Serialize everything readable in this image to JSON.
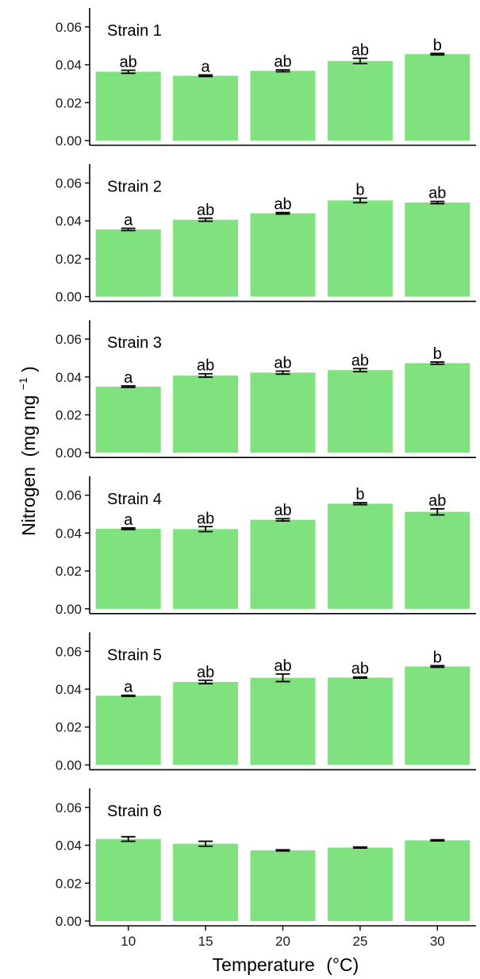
{
  "chart_data": {
    "type": "bar",
    "xlabel": "Temperature",
    "xlabel_unit": "(°C)",
    "ylabel": "Nitrogen",
    "ylabel_unit": "(mg  mg",
    "ylabel_unit_sup": "−1",
    "ylabel_unit_close": ")",
    "categories": [
      "10",
      "15",
      "20",
      "25",
      "30"
    ],
    "ylim": [
      0,
      0.07
    ],
    "yticks": [
      "0.00",
      "0.02",
      "0.04",
      "0.06"
    ],
    "bar_color": "#80e27e",
    "grid": false,
    "panels": [
      {
        "name": "Strain 1",
        "values": [
          0.0363,
          0.0342,
          0.0368,
          0.042,
          0.0456
        ],
        "errors": [
          0.0008,
          0.0004,
          0.0005,
          0.0014,
          0.0004
        ],
        "letters": [
          "ab",
          "a",
          "ab",
          "ab",
          "b"
        ]
      },
      {
        "name": "Strain 2",
        "values": [
          0.0355,
          0.0406,
          0.044,
          0.0508,
          0.0497
        ],
        "errors": [
          0.0006,
          0.0008,
          0.0004,
          0.0012,
          0.0006
        ],
        "letters": [
          "a",
          "ab",
          "ab",
          "b",
          "ab"
        ]
      },
      {
        "name": "Strain 3",
        "values": [
          0.0349,
          0.0408,
          0.0423,
          0.0436,
          0.0473
        ],
        "errors": [
          0.0004,
          0.0009,
          0.0008,
          0.0008,
          0.0006
        ],
        "letters": [
          "a",
          "ab",
          "ab",
          "ab",
          "b"
        ]
      },
      {
        "name": "Strain 4",
        "values": [
          0.0423,
          0.0421,
          0.047,
          0.0555,
          0.0512
        ],
        "errors": [
          0.0004,
          0.0013,
          0.0006,
          0.0005,
          0.0016
        ],
        "letters": [
          "a",
          "ab",
          "ab",
          "b",
          "ab"
        ]
      },
      {
        "name": "Strain 5",
        "values": [
          0.0365,
          0.0438,
          0.046,
          0.0461,
          0.052
        ],
        "errors": [
          0.0003,
          0.0009,
          0.002,
          0.0003,
          0.0004
        ],
        "letters": [
          "a",
          "ab",
          "ab",
          "ab",
          "b"
        ]
      },
      {
        "name": "Strain 6",
        "values": [
          0.0433,
          0.0408,
          0.0373,
          0.0388,
          0.0426
        ],
        "errors": [
          0.0012,
          0.0013,
          0.0003,
          0.0003,
          0.0003
        ],
        "letters": [
          "",
          "",
          "",
          "",
          ""
        ]
      }
    ]
  }
}
